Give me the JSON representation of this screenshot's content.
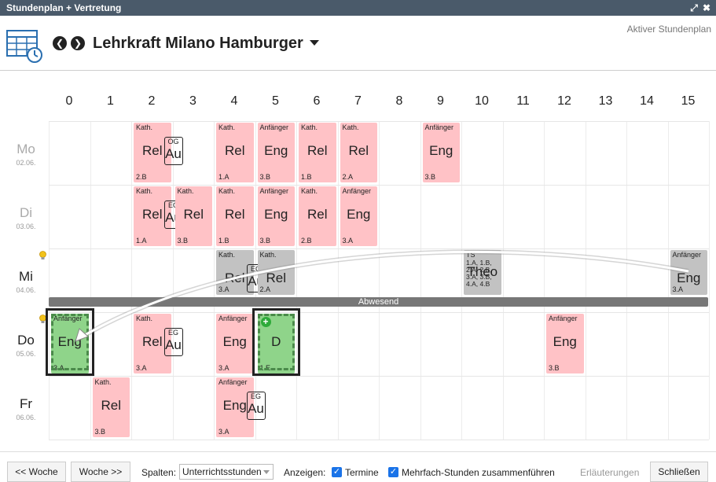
{
  "window": {
    "title": "Stundenplan + Vertretung",
    "expand_glyph": "⤢",
    "close_glyph": "✖"
  },
  "header": {
    "teacher": "Lehrkraft Milano Hamburger",
    "active_plan": "Aktiver Stundenplan",
    "prev_glyph": "❮",
    "next_glyph": "❯"
  },
  "columns": [
    "0",
    "1",
    "2",
    "3",
    "4",
    "5",
    "6",
    "7",
    "8",
    "9",
    "10",
    "11",
    "12",
    "13",
    "14",
    "15"
  ],
  "days": [
    {
      "name": "Mo",
      "date": "02.06.",
      "muted": true
    },
    {
      "name": "Di",
      "date": "03.06.",
      "muted": true
    },
    {
      "name": "Mi",
      "date": "04.06.",
      "muted": false
    },
    {
      "name": "Do",
      "date": "05.06.",
      "muted": false
    },
    {
      "name": "Fr",
      "date": "06.06.",
      "muted": false
    }
  ],
  "lessons": [
    {
      "day": 0,
      "col": 2,
      "span": 1,
      "top": "Kath.",
      "main": "Rel",
      "bot": "2.B",
      "color": "pink",
      "badge": {
        "top": "OG",
        "main": "Au"
      }
    },
    {
      "day": 0,
      "col": 4,
      "span": 1,
      "top": "Kath.",
      "main": "Rel",
      "bot": "1.A",
      "color": "pink"
    },
    {
      "day": 0,
      "col": 5,
      "span": 1,
      "top": "Anfänger",
      "main": "Eng",
      "bot": "3.B",
      "color": "pink"
    },
    {
      "day": 0,
      "col": 6,
      "span": 1,
      "top": "Kath.",
      "main": "Rel",
      "bot": "1.B",
      "color": "pink"
    },
    {
      "day": 0,
      "col": 7,
      "span": 1,
      "top": "Kath.",
      "main": "Rel",
      "bot": "2.A",
      "color": "pink"
    },
    {
      "day": 0,
      "col": 9,
      "span": 1,
      "top": "Anfänger",
      "main": "Eng",
      "bot": "3.B",
      "color": "pink"
    },
    {
      "day": 1,
      "col": 2,
      "span": 1,
      "top": "Kath.",
      "main": "Rel",
      "bot": "1.A",
      "color": "pink",
      "badge": {
        "top": "EG",
        "main": "Au"
      }
    },
    {
      "day": 1,
      "col": 3,
      "span": 1,
      "top": "Kath.",
      "main": "Rel",
      "bot": "3.B",
      "color": "pink"
    },
    {
      "day": 1,
      "col": 4,
      "span": 1,
      "top": "Kath.",
      "main": "Rel",
      "bot": "1.B",
      "color": "pink"
    },
    {
      "day": 1,
      "col": 5,
      "span": 1,
      "top": "Anfänger",
      "main": "Eng",
      "bot": "3.B",
      "color": "pink"
    },
    {
      "day": 1,
      "col": 6,
      "span": 1,
      "top": "Kath.",
      "main": "Rel",
      "bot": "2.B",
      "color": "pink"
    },
    {
      "day": 1,
      "col": 7,
      "span": 1,
      "top": "Anfänger",
      "main": "Eng",
      "bot": "3.A",
      "color": "pink"
    },
    {
      "day": 2,
      "col": 4,
      "span": 1,
      "top": "Kath.",
      "main": "Rel",
      "bot": "3.A",
      "color": "grey",
      "badge": {
        "top": "EG",
        "main": "Au"
      }
    },
    {
      "day": 2,
      "col": 5,
      "span": 1,
      "top": "Kath.",
      "main": "Rel",
      "bot": "2.A",
      "color": "grey"
    },
    {
      "day": 2,
      "col": 10,
      "span": 1,
      "top": "TS",
      "main": "Theo",
      "bot": "1.A, 1.B, 2.A, 2.B, 3.A, 3.B, 4.A, 4.B",
      "color": "grey"
    },
    {
      "day": 2,
      "col": 15,
      "span": 1,
      "top": "Anfänger",
      "main": "Eng",
      "bot": "3.A",
      "color": "grey"
    },
    {
      "day": 3,
      "col": 0,
      "span": 1,
      "top": "Anfänger",
      "main": "Eng",
      "bot": "3.A",
      "color": "green",
      "selected": true
    },
    {
      "day": 3,
      "col": 2,
      "span": 1,
      "top": "Kath.",
      "main": "Rel",
      "bot": "3.A",
      "color": "pink",
      "badge": {
        "top": "EG",
        "main": "Au"
      }
    },
    {
      "day": 3,
      "col": 4,
      "span": 1,
      "top": "Anfänger",
      "main": "Eng",
      "bot": "3.A",
      "color": "pink"
    },
    {
      "day": 3,
      "col": 5,
      "span": 1,
      "top": "",
      "main": "D",
      "bot": "1.E",
      "color": "green",
      "selected": true,
      "plus": true
    },
    {
      "day": 3,
      "col": 12,
      "span": 1,
      "top": "Anfänger",
      "main": "Eng",
      "bot": "3.B",
      "color": "pink"
    },
    {
      "day": 4,
      "col": 1,
      "span": 1,
      "top": "Kath.",
      "main": "Rel",
      "bot": "3.B",
      "color": "pink"
    },
    {
      "day": 4,
      "col": 4,
      "span": 1,
      "top": "Anfänger",
      "main": "Eng",
      "bot": "3.A",
      "color": "pink",
      "badge": {
        "top": "EG",
        "main": "Au"
      }
    }
  ],
  "absent_label": "Abwesend",
  "footer": {
    "prev_week": "<< Woche",
    "next_week": "Woche >>",
    "columns_label": "Spalten:",
    "columns_value": "Unterrichtsstunden",
    "show_label": "Anzeigen:",
    "termine_label": "Termine",
    "merge_label": "Mehrfach-Stunden zusammenführen",
    "explanations": "Erläuterungen",
    "close": "Schließen",
    "check_glyph": "✓"
  },
  "colors": {
    "pink": "#ffc2c6",
    "grey": "#c2c2c2",
    "green": "#8fd48a",
    "titlebar": "#4a5a6a"
  }
}
